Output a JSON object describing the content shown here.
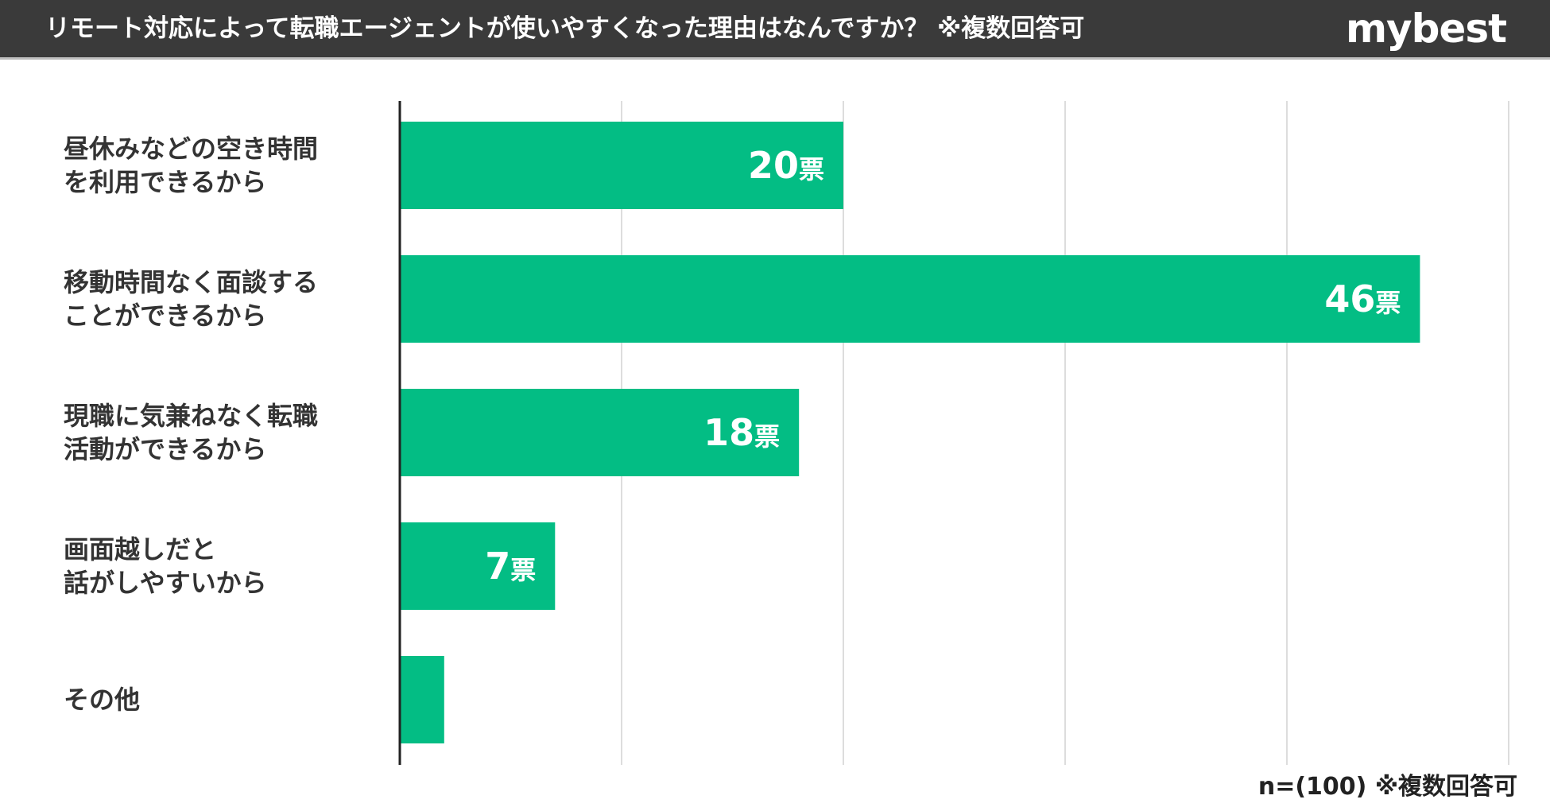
{
  "header": {
    "title": "リモート対応によって転職エージェントが使いやすくなった理由はなんですか？ ※複数回答可",
    "brand": "mybest"
  },
  "footnote": "n=(100) ※複数回答可",
  "colors": {
    "bar": "#03bd84",
    "header_bg": "#3a3a3a",
    "grid": "#dddddd",
    "axis": "#222222"
  },
  "chart_data": {
    "type": "bar",
    "orientation": "horizontal",
    "categories": [
      "昼休みなどの空き時間\nを利用できるから",
      "移動時間なく面談する\nことができるから",
      "現職に気兼ねなく転職\n活動ができるから",
      "画面越しだと\n話がしやすいから",
      "その他"
    ],
    "values": [
      20,
      46,
      18,
      7,
      2
    ],
    "data_labels": [
      "20票",
      "46票",
      "18票",
      "7票",
      ""
    ],
    "xlim": [
      0,
      50
    ],
    "grid": true
  }
}
